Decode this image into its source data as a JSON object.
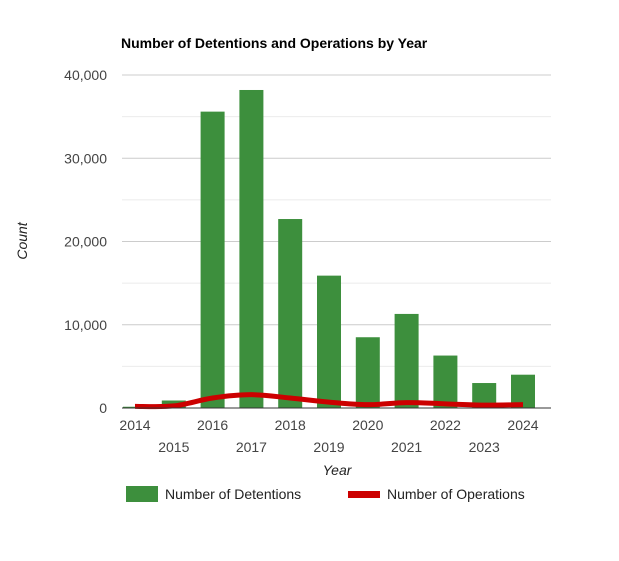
{
  "chart_data": {
    "type": "bar",
    "title": "Number of Detentions and Operations by Year",
    "xlabel": "Year",
    "ylabel": "Count",
    "categories": [
      "2014",
      "2015",
      "2016",
      "2017",
      "2018",
      "2019",
      "2020",
      "2021",
      "2022",
      "2023",
      "2024"
    ],
    "ylim": [
      0,
      40000
    ],
    "yticks": [
      0,
      10000,
      20000,
      30000,
      40000
    ],
    "ytick_labels": [
      "0",
      "10,000",
      "20,000",
      "30,000",
      "40,000"
    ],
    "grid": true,
    "legend_position": "bottom",
    "series": [
      {
        "name": "Number of Detentions",
        "type": "bar",
        "color": "#3d8f3d",
        "values": [
          150,
          900,
          35600,
          38200,
          22700,
          15900,
          8500,
          11300,
          6300,
          3000,
          4000
        ]
      },
      {
        "name": "Number of Operations",
        "type": "line",
        "color": "#cc0000",
        "values": [
          200,
          250,
          1200,
          1600,
          1200,
          700,
          400,
          650,
          500,
          350,
          400
        ]
      }
    ]
  }
}
